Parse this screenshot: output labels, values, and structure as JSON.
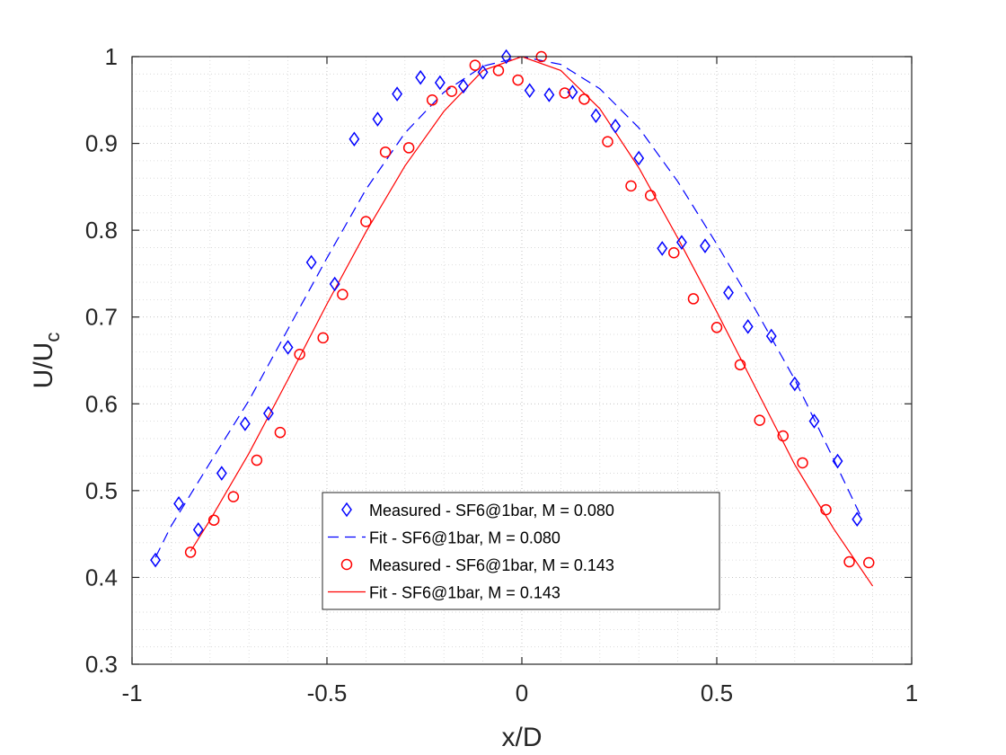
{
  "chart_data": {
    "type": "scatter",
    "xlabel": "x/D",
    "ylabel_main": "U/U",
    "ylabel_sub": "c",
    "xlim": [
      -1,
      1
    ],
    "ylim": [
      0.3,
      1
    ],
    "xticks": [
      -1,
      -0.5,
      0,
      0.5,
      1
    ],
    "xtick_labels": [
      "-1",
      "-0.5",
      "0",
      "0.5",
      "1"
    ],
    "yticks": [
      0.3,
      0.4,
      0.5,
      0.6,
      0.7,
      0.8,
      0.9,
      1
    ],
    "ytick_labels": [
      "0.3",
      "0.4",
      "0.5",
      "0.6",
      "0.7",
      "0.8",
      "0.9",
      "1"
    ],
    "grid": "dotted major and minor",
    "legend_position": "lower-center",
    "series": [
      {
        "name": "Measured - SF6@1bar, M = 0.080",
        "kind": "markers",
        "marker": "diamond",
        "color": "#0000ff",
        "x": [
          -0.94,
          -0.88,
          -0.83,
          -0.77,
          -0.71,
          -0.65,
          -0.6,
          -0.54,
          -0.48,
          -0.43,
          -0.37,
          -0.32,
          -0.26,
          -0.21,
          -0.15,
          -0.1,
          -0.04,
          0.02,
          0.07,
          0.13,
          0.19,
          0.24,
          0.3,
          0.36,
          0.41,
          0.47,
          0.53,
          0.58,
          0.64,
          0.7,
          0.75,
          0.81,
          0.86
        ],
        "y": [
          0.42,
          0.485,
          0.455,
          0.52,
          0.577,
          0.589,
          0.665,
          0.763,
          0.738,
          0.905,
          0.928,
          0.957,
          0.976,
          0.97,
          0.966,
          0.982,
          1.0,
          0.961,
          0.956,
          0.959,
          0.932,
          0.92,
          0.883,
          0.779,
          0.786,
          0.782,
          0.728,
          0.689,
          0.678,
          0.623,
          0.58,
          0.534,
          0.467
        ]
      },
      {
        "name": "Fit - SF6@1bar, M = 0.080",
        "kind": "line",
        "dash": "dashed",
        "color": "#0000ff",
        "x": [
          -0.94,
          -0.9,
          -0.8,
          -0.7,
          -0.6,
          -0.5,
          -0.4,
          -0.3,
          -0.2,
          -0.1,
          0.0,
          0.1,
          0.2,
          0.3,
          0.4,
          0.5,
          0.6,
          0.7,
          0.8,
          0.87
        ],
        "y": [
          0.423,
          0.459,
          0.532,
          0.604,
          0.686,
          0.768,
          0.847,
          0.912,
          0.959,
          0.989,
          1.0,
          0.991,
          0.963,
          0.918,
          0.856,
          0.784,
          0.708,
          0.628,
          0.536,
          0.47
        ]
      },
      {
        "name": "Measured - SF6@1bar, M = 0.143",
        "kind": "markers",
        "marker": "circle",
        "color": "#ff0000",
        "x": [
          -0.85,
          -0.79,
          -0.74,
          -0.68,
          -0.62,
          -0.57,
          -0.51,
          -0.46,
          -0.4,
          -0.35,
          -0.29,
          -0.23,
          -0.18,
          -0.12,
          -0.06,
          -0.01,
          0.05,
          0.11,
          0.16,
          0.22,
          0.28,
          0.33,
          0.39,
          0.44,
          0.5,
          0.56,
          0.61,
          0.67,
          0.72,
          0.78,
          0.84,
          0.89
        ],
        "y": [
          0.429,
          0.466,
          0.493,
          0.535,
          0.567,
          0.657,
          0.676,
          0.726,
          0.81,
          0.89,
          0.895,
          0.95,
          0.96,
          0.99,
          0.984,
          0.973,
          1.0,
          0.958,
          0.951,
          0.902,
          0.851,
          0.84,
          0.774,
          0.721,
          0.688,
          0.645,
          0.581,
          0.563,
          0.532,
          0.478,
          0.418,
          0.417
        ]
      },
      {
        "name": "Fit - SF6@1bar, M = 0.143",
        "kind": "line",
        "dash": "solid",
        "color": "#ff0000",
        "x": [
          -0.85,
          -0.8,
          -0.7,
          -0.6,
          -0.5,
          -0.4,
          -0.3,
          -0.2,
          -0.1,
          0.0,
          0.1,
          0.2,
          0.3,
          0.4,
          0.5,
          0.6,
          0.7,
          0.8,
          0.9
        ],
        "y": [
          0.43,
          0.466,
          0.543,
          0.628,
          0.715,
          0.798,
          0.874,
          0.937,
          0.984,
          1.0,
          0.984,
          0.94,
          0.872,
          0.791,
          0.706,
          0.618,
          0.53,
          0.456,
          0.39
        ]
      }
    ]
  }
}
